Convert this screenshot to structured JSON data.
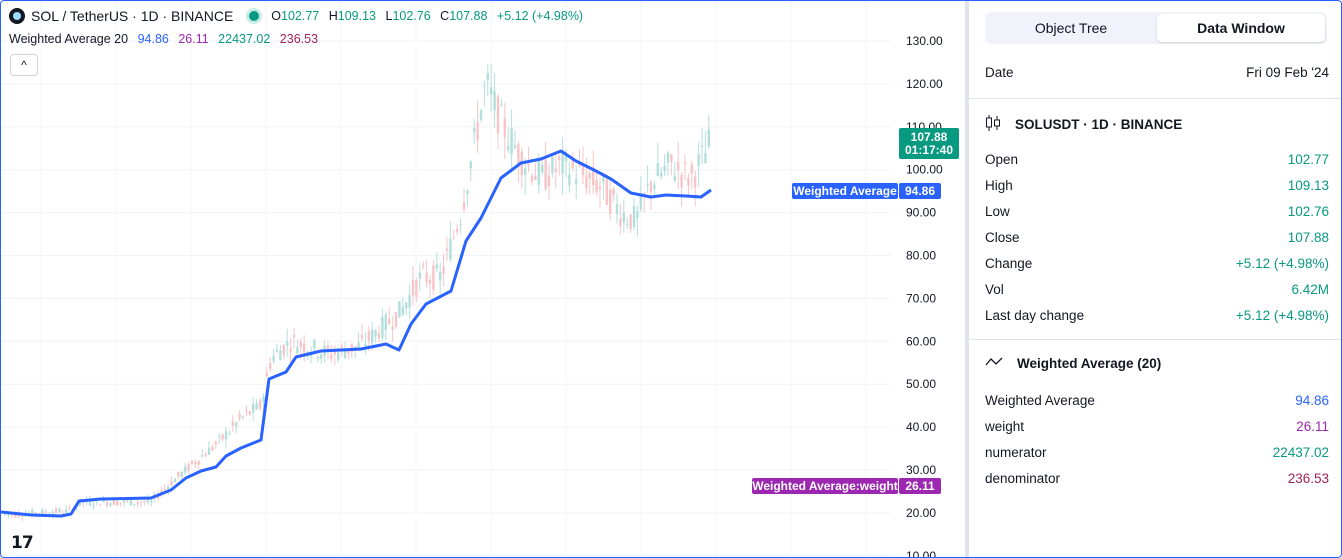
{
  "header": {
    "symbol": "SOL / TetherUS · 1D · BINANCE",
    "ohlc": [
      {
        "k": "O",
        "v": "102.77"
      },
      {
        "k": "H",
        "v": "109.13"
      },
      {
        "k": "L",
        "v": "102.76"
      },
      {
        "k": "C",
        "v": "107.88"
      },
      {
        "k": "",
        "v": "+5.12 (+4.98%)"
      }
    ]
  },
  "indicator_legend": {
    "name": "Weighted Average 20",
    "values": [
      "94.86",
      "26.11",
      "22437.02",
      "236.53"
    ]
  },
  "collapse_icon": "^",
  "price_axis": [
    "130.00",
    "120.00",
    "110.00",
    "100.00",
    "90.00",
    "80.00",
    "70.00",
    "60.00",
    "50.00",
    "40.00",
    "30.00",
    "20.00",
    "10.00"
  ],
  "labels": {
    "last_price": "107.88",
    "countdown": "01:17:40",
    "wa_name": "Weighted Average",
    "wa_value": "94.86",
    "weight_name": "Weighted Average:weight",
    "weight_value": "26.11"
  },
  "colors": {
    "up": "#089981",
    "up_candle": "#b2dfdb",
    "down_candle": "#f7c5c8",
    "wa_line": "#2962ff",
    "weight": "#9c27b0"
  },
  "tradingview_logo": "17",
  "sidebar": {
    "tabs": [
      "Object Tree",
      "Data Window"
    ],
    "date_label": "Date",
    "date_value": "Fri 09 Feb '24",
    "symbol_section": "SOLUSDT · 1D · BINANCE",
    "symbol_rows": [
      {
        "label": "Open",
        "value": "102.77"
      },
      {
        "label": "High",
        "value": "109.13"
      },
      {
        "label": "Low",
        "value": "102.76"
      },
      {
        "label": "Close",
        "value": "107.88"
      },
      {
        "label": "Change",
        "value": "+5.12 (+4.98%)"
      },
      {
        "label": "Vol",
        "value": "6.42M"
      },
      {
        "label": "Last day change",
        "value": "+5.12 (+4.98%)"
      }
    ],
    "indicator_section": "Weighted Average (20)",
    "indicator_rows": [
      {
        "label": "Weighted Average",
        "value": "94.86"
      },
      {
        "label": "weight",
        "value": "26.11"
      },
      {
        "label": "numerator",
        "value": "22437.02"
      },
      {
        "label": "denominator",
        "value": "236.53"
      }
    ]
  }
}
